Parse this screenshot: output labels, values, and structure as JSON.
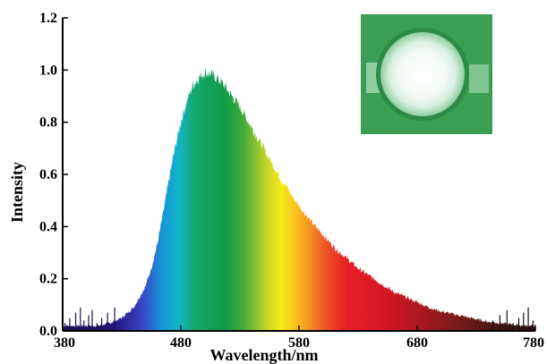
{
  "chart_data": {
    "type": "area",
    "xlabel": "Wavelength/nm",
    "ylabel": "Intensity",
    "xlim": [
      380,
      780
    ],
    "ylim": [
      0,
      1.2
    ],
    "x_ticks": [
      380,
      480,
      580,
      680,
      780
    ],
    "y_ticks": [
      "0.0",
      "0.2",
      "0.4",
      "0.6",
      "0.8",
      "1.0",
      "1.2"
    ],
    "grid": false,
    "legend": "none",
    "fill": "visible-spectrum gradient",
    "x": [
      380,
      390,
      400,
      410,
      420,
      430,
      440,
      450,
      455,
      460,
      465,
      470,
      475,
      480,
      485,
      490,
      495,
      500,
      505,
      510,
      515,
      520,
      525,
      530,
      535,
      540,
      545,
      550,
      555,
      560,
      565,
      570,
      575,
      580,
      590,
      600,
      610,
      620,
      630,
      640,
      650,
      660,
      670,
      680,
      690,
      700,
      710,
      720,
      730,
      740,
      750,
      760,
      770,
      780
    ],
    "y": [
      0.02,
      0.02,
      0.02,
      0.02,
      0.03,
      0.05,
      0.09,
      0.17,
      0.24,
      0.33,
      0.45,
      0.58,
      0.7,
      0.8,
      0.88,
      0.94,
      0.97,
      0.99,
      0.985,
      0.97,
      0.95,
      0.92,
      0.89,
      0.86,
      0.82,
      0.78,
      0.74,
      0.7,
      0.66,
      0.62,
      0.58,
      0.55,
      0.51,
      0.48,
      0.42,
      0.37,
      0.32,
      0.28,
      0.24,
      0.21,
      0.18,
      0.15,
      0.13,
      0.11,
      0.09,
      0.075,
      0.065,
      0.055,
      0.045,
      0.035,
      0.03,
      0.025,
      0.02,
      0.02
    ]
  },
  "inset": {
    "type": "photo",
    "subject": "green-glowing-led-device",
    "colors": {
      "background": "#3fa55a",
      "glow": "#f4fbf6"
    }
  }
}
